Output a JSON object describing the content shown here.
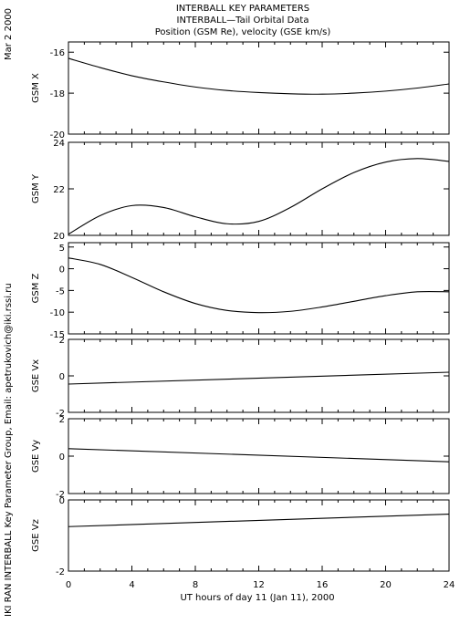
{
  "header": {
    "date": "Mar  2 2000",
    "title_line1": "INTERBALL KEY PARAMETERS",
    "title_line2": "INTERBALL—Tail Orbital Data",
    "title_line3": "Position (GSM Re), velocity (GSE km/s)"
  },
  "footer": {
    "side_text": "IKI RAN INTERBALL Key Parameter Group, Email: apetrukovich@iki.rssi.ru",
    "xlabel": "UT hours of day  11 (Jan 11), 2000"
  },
  "chart_data": [
    {
      "type": "line",
      "ylabel": "GSM X",
      "ylim": [
        -20,
        -15.5
      ],
      "yticks": [
        -16,
        -18,
        -20
      ],
      "ytick_labels": [
        "-16",
        "-18",
        "-20"
      ],
      "x": [
        0,
        2,
        4,
        6,
        8,
        10,
        12,
        14,
        16,
        18,
        20,
        22,
        24
      ],
      "y": [
        -16.3,
        -16.75,
        -17.15,
        -17.45,
        -17.7,
        -17.87,
        -17.97,
        -18.03,
        -18.05,
        -18.0,
        -17.9,
        -17.75,
        -17.55
      ]
    },
    {
      "type": "line",
      "ylabel": "GSM Y",
      "ylim": [
        20,
        24
      ],
      "yticks": [
        24,
        22,
        20
      ],
      "ytick_labels": [
        "24",
        "22",
        "20"
      ],
      "x": [
        0,
        2,
        4,
        6,
        8,
        10,
        12,
        14,
        16,
        18,
        20,
        22,
        24
      ],
      "y": [
        20.05,
        20.85,
        21.28,
        21.2,
        20.8,
        20.5,
        20.6,
        21.2,
        22.0,
        22.7,
        23.15,
        23.3,
        23.18
      ]
    },
    {
      "type": "line",
      "ylabel": "GSM Z",
      "ylim": [
        -15,
        6
      ],
      "yticks": [
        5,
        0,
        -5,
        -10,
        -15
      ],
      "ytick_labels": [
        "5",
        "0",
        "-5",
        "-10",
        "-15"
      ],
      "x": [
        0,
        2,
        4,
        6,
        8,
        10,
        12,
        14,
        16,
        18,
        20,
        22,
        24
      ],
      "y": [
        2.5,
        1.0,
        -2.0,
        -5.3,
        -8.0,
        -9.6,
        -10.1,
        -9.8,
        -8.8,
        -7.5,
        -6.2,
        -5.3,
        -5.3
      ]
    },
    {
      "type": "line",
      "ylabel": "GSE Vx",
      "ylim": [
        -2,
        2
      ],
      "yticks": [
        2,
        0,
        -2
      ],
      "ytick_labels": [
        "2",
        "0",
        "-2"
      ],
      "x": [
        0,
        24
      ],
      "y": [
        -0.45,
        0.2
      ]
    },
    {
      "type": "line",
      "ylabel": "GSE Vy",
      "ylim": [
        -2,
        2
      ],
      "yticks": [
        2,
        0,
        -2
      ],
      "ytick_labels": [
        "2",
        "0",
        "-2"
      ],
      "x": [
        0,
        24
      ],
      "y": [
        0.4,
        -0.3
      ]
    },
    {
      "type": "line",
      "ylabel": "GSE Vz",
      "ylim": [
        -2,
        0
      ],
      "yticks": [
        0,
        -2
      ],
      "ytick_labels": [
        "0",
        "-2"
      ],
      "x": [
        0,
        24
      ],
      "y": [
        -0.75,
        -0.4
      ]
    }
  ],
  "xaxis": {
    "xlim": [
      0,
      24
    ],
    "ticks": [
      0,
      4,
      8,
      12,
      16,
      20,
      24
    ],
    "tick_labels": [
      "0",
      "4",
      "8",
      "12",
      "16",
      "20",
      "24"
    ]
  }
}
